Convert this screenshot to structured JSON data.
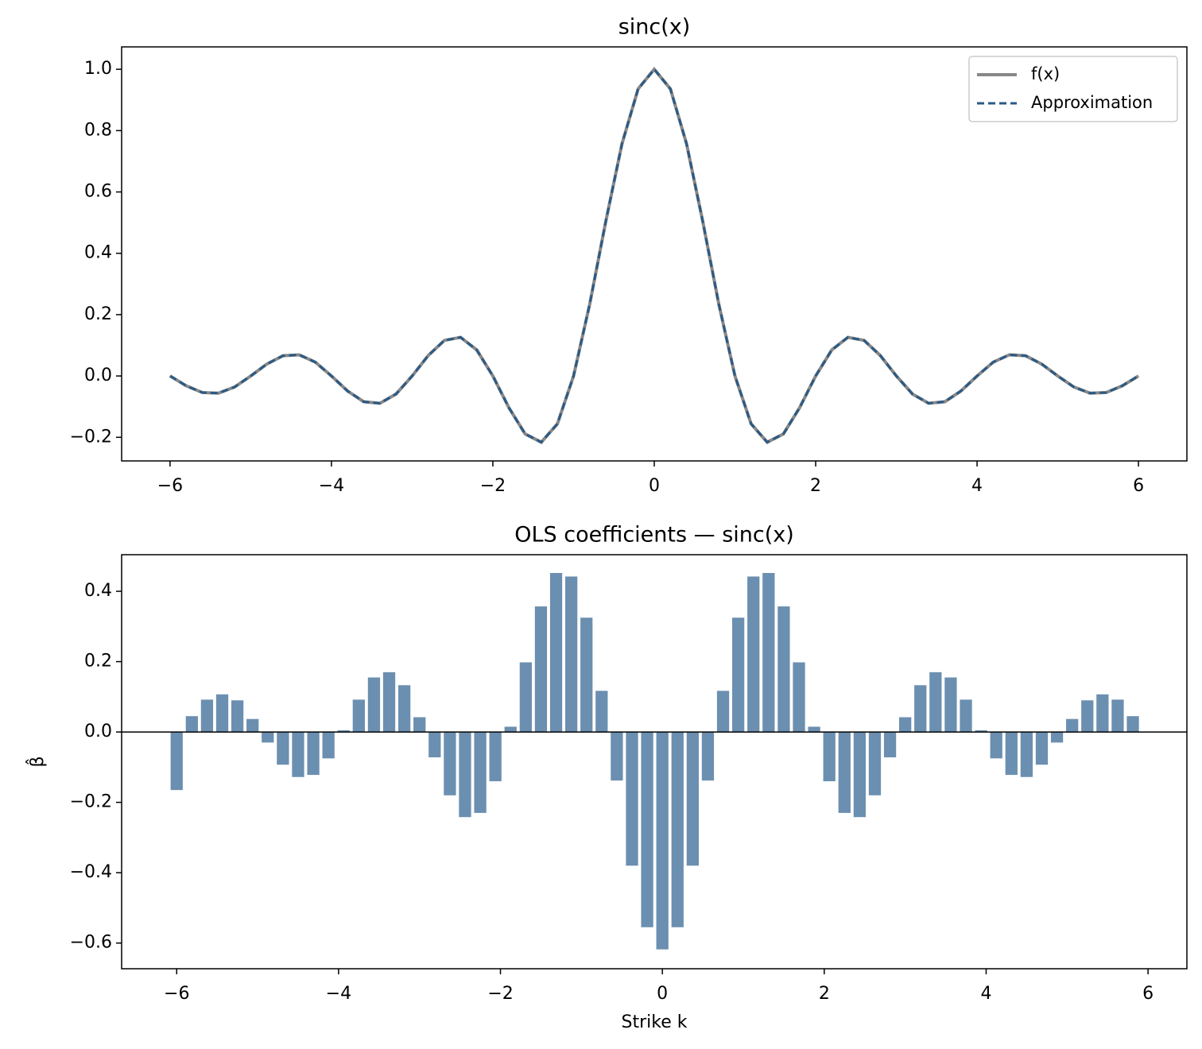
{
  "chart_data": [
    {
      "type": "line",
      "title": "sinc(x)",
      "x": [
        -6,
        -5.8,
        -5.6,
        -5.4,
        -5.2,
        -5,
        -4.8,
        -4.6,
        -4.4,
        -4.2,
        -4,
        -3.8,
        -3.6,
        -3.4,
        -3.2,
        -3,
        -2.8,
        -2.6,
        -2.4,
        -2.2,
        -2,
        -1.8,
        -1.6,
        -1.4,
        -1.2,
        -1,
        -0.8,
        -0.6,
        -0.4,
        -0.2,
        0,
        0.2,
        0.4,
        0.6,
        0.8,
        1,
        1.2,
        1.4,
        1.6,
        1.8,
        2,
        2.2,
        2.4,
        2.6,
        2.8,
        3,
        3.2,
        3.4,
        3.6,
        3.8,
        4,
        4.2,
        4.4,
        4.6,
        4.8,
        5,
        5.2,
        5.4,
        5.6,
        5.8,
        6
      ],
      "series": [
        {
          "name": "f(x)",
          "color": "#888888",
          "linestyle": "solid",
          "values": [
            0,
            -0.032,
            -0.054,
            -0.056,
            -0.036,
            0,
            0.039,
            0.066,
            0.069,
            0.045,
            0,
            -0.049,
            -0.084,
            -0.089,
            -0.059,
            0,
            0.067,
            0.116,
            0.126,
            0.085,
            0,
            -0.104,
            -0.189,
            -0.216,
            -0.156,
            0,
            0.234,
            0.505,
            0.757,
            0.936,
            1,
            0.936,
            0.757,
            0.505,
            0.234,
            0,
            -0.156,
            -0.216,
            -0.189,
            -0.104,
            0,
            0.085,
            0.126,
            0.116,
            0.067,
            0,
            -0.059,
            -0.089,
            -0.084,
            -0.049,
            0,
            0.045,
            0.069,
            0.066,
            0.039,
            0,
            -0.036,
            -0.056,
            -0.054,
            -0.032,
            0
          ]
        },
        {
          "name": "Approximation",
          "color": "#2b5a85",
          "linestyle": "dashed",
          "values": [
            0,
            -0.032,
            -0.054,
            -0.056,
            -0.036,
            0,
            0.039,
            0.066,
            0.069,
            0.045,
            0,
            -0.049,
            -0.084,
            -0.089,
            -0.059,
            0,
            0.067,
            0.116,
            0.126,
            0.085,
            0,
            -0.104,
            -0.189,
            -0.216,
            -0.156,
            0,
            0.234,
            0.505,
            0.757,
            0.936,
            1,
            0.936,
            0.757,
            0.505,
            0.234,
            0,
            -0.156,
            -0.216,
            -0.189,
            -0.104,
            0,
            0.085,
            0.126,
            0.116,
            0.067,
            0,
            -0.059,
            -0.089,
            -0.084,
            -0.049,
            0,
            0.045,
            0.069,
            0.066,
            0.039,
            0,
            -0.036,
            -0.056,
            -0.054,
            -0.032,
            0
          ]
        }
      ],
      "xlim": [
        -6.6,
        6.6
      ],
      "ylim": [
        -0.277,
        1.073
      ],
      "xticks": [
        {
          "value": -6,
          "label": "−6"
        },
        {
          "value": -4,
          "label": "−4"
        },
        {
          "value": -2,
          "label": "−2"
        },
        0,
        2,
        4,
        6
      ],
      "yticks": [
        {
          "value": -0.2,
          "label": "−0.2"
        },
        {
          "value": 0,
          "label": "0.0"
        },
        {
          "value": 0.2,
          "label": "0.2"
        },
        {
          "value": 0.4,
          "label": "0.4"
        },
        {
          "value": 0.6,
          "label": "0.6"
        },
        {
          "value": 0.8,
          "label": "0.8"
        },
        {
          "value": 1,
          "label": "1.0"
        }
      ],
      "legend": "upper right"
    },
    {
      "type": "bar",
      "title": "OLS coefficients — sinc(x)",
      "xlabel": "Strike k",
      "ylabel": "β̂",
      "color": "#6b8fb0",
      "x": [
        -6,
        -5.8125,
        -5.625,
        -5.4375,
        -5.25,
        -5.0625,
        -4.875,
        -4.6875,
        -4.5,
        -4.3125,
        -4.125,
        -3.9375,
        -3.75,
        -3.5625,
        -3.375,
        -3.1875,
        -3,
        -2.8125,
        -2.625,
        -2.4375,
        -2.25,
        -2.0625,
        -1.875,
        -1.6875,
        -1.5,
        -1.3125,
        -1.125,
        -0.9375,
        -0.75,
        -0.5625,
        -0.375,
        -0.1875,
        0,
        0.1875,
        0.375,
        0.5625,
        0.75,
        0.9375,
        1.125,
        1.3125,
        1.5,
        1.6875,
        1.875,
        2.0625,
        2.25,
        2.4375,
        2.625,
        2.8125,
        3,
        3.1875,
        3.375,
        3.5625,
        3.75,
        3.9375,
        4.125,
        4.3125,
        4.5,
        4.6875,
        4.875,
        5.0625,
        5.25,
        5.4375,
        5.625,
        5.8125
      ],
      "values": [
        -0.165,
        0.045,
        0.092,
        0.107,
        0.09,
        0.037,
        -0.03,
        -0.093,
        -0.128,
        -0.122,
        -0.075,
        0.005,
        0.092,
        0.155,
        0.17,
        0.133,
        0.042,
        -0.072,
        -0.18,
        -0.242,
        -0.23,
        -0.14,
        0.015,
        0.198,
        0.357,
        0.452,
        0.442,
        0.325,
        0.117,
        -0.138,
        -0.38,
        -0.555,
        -0.618,
        -0.555,
        -0.38,
        -0.138,
        0.117,
        0.325,
        0.442,
        0.452,
        0.357,
        0.198,
        0.015,
        -0.14,
        -0.23,
        -0.242,
        -0.18,
        -0.072,
        0.042,
        0.133,
        0.17,
        0.155,
        0.092,
        0.005,
        -0.075,
        -0.122,
        -0.128,
        -0.093,
        -0.03,
        0.037,
        0.09,
        0.107,
        0.092,
        0.045
      ],
      "hline": 0,
      "xlim": [
        -6.68,
        6.48
      ],
      "ylim": [
        -0.673,
        0.504
      ],
      "xticks": [
        {
          "value": -6,
          "label": "−6"
        },
        {
          "value": -4,
          "label": "−4"
        },
        {
          "value": -2,
          "label": "−2"
        },
        0,
        2,
        4,
        6
      ],
      "yticks": [
        {
          "value": -0.6,
          "label": "−0.6"
        },
        {
          "value": -0.4,
          "label": "−0.4"
        },
        {
          "value": -0.2,
          "label": "−0.2"
        },
        {
          "value": 0,
          "label": "0.0"
        },
        {
          "value": 0.2,
          "label": "0.2"
        },
        {
          "value": 0.4,
          "label": "0.4"
        }
      ]
    }
  ]
}
